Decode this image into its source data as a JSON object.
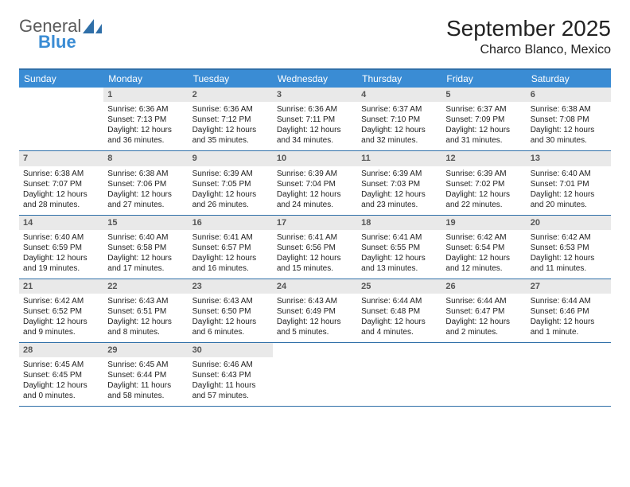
{
  "brand": {
    "line1": "General",
    "line2": "Blue",
    "icon_color": "#2f6fa8"
  },
  "title": "September 2025",
  "location": "Charco Blanco, Mexico",
  "colors": {
    "header_bg": "#3a8cd4",
    "header_text": "#ffffff",
    "border": "#2f6fa8",
    "daynum_bg": "#e9e9e9",
    "daynum_text": "#555555",
    "body_text": "#222222"
  },
  "weekdays": [
    "Sunday",
    "Monday",
    "Tuesday",
    "Wednesday",
    "Thursday",
    "Friday",
    "Saturday"
  ],
  "weeks": [
    [
      null,
      {
        "n": "1",
        "sr": "6:36 AM",
        "ss": "7:13 PM",
        "dl": "12 hours and 36 minutes."
      },
      {
        "n": "2",
        "sr": "6:36 AM",
        "ss": "7:12 PM",
        "dl": "12 hours and 35 minutes."
      },
      {
        "n": "3",
        "sr": "6:36 AM",
        "ss": "7:11 PM",
        "dl": "12 hours and 34 minutes."
      },
      {
        "n": "4",
        "sr": "6:37 AM",
        "ss": "7:10 PM",
        "dl": "12 hours and 32 minutes."
      },
      {
        "n": "5",
        "sr": "6:37 AM",
        "ss": "7:09 PM",
        "dl": "12 hours and 31 minutes."
      },
      {
        "n": "6",
        "sr": "6:38 AM",
        "ss": "7:08 PM",
        "dl": "12 hours and 30 minutes."
      }
    ],
    [
      {
        "n": "7",
        "sr": "6:38 AM",
        "ss": "7:07 PM",
        "dl": "12 hours and 28 minutes."
      },
      {
        "n": "8",
        "sr": "6:38 AM",
        "ss": "7:06 PM",
        "dl": "12 hours and 27 minutes."
      },
      {
        "n": "9",
        "sr": "6:39 AM",
        "ss": "7:05 PM",
        "dl": "12 hours and 26 minutes."
      },
      {
        "n": "10",
        "sr": "6:39 AM",
        "ss": "7:04 PM",
        "dl": "12 hours and 24 minutes."
      },
      {
        "n": "11",
        "sr": "6:39 AM",
        "ss": "7:03 PM",
        "dl": "12 hours and 23 minutes."
      },
      {
        "n": "12",
        "sr": "6:39 AM",
        "ss": "7:02 PM",
        "dl": "12 hours and 22 minutes."
      },
      {
        "n": "13",
        "sr": "6:40 AM",
        "ss": "7:01 PM",
        "dl": "12 hours and 20 minutes."
      }
    ],
    [
      {
        "n": "14",
        "sr": "6:40 AM",
        "ss": "6:59 PM",
        "dl": "12 hours and 19 minutes."
      },
      {
        "n": "15",
        "sr": "6:40 AM",
        "ss": "6:58 PM",
        "dl": "12 hours and 17 minutes."
      },
      {
        "n": "16",
        "sr": "6:41 AM",
        "ss": "6:57 PM",
        "dl": "12 hours and 16 minutes."
      },
      {
        "n": "17",
        "sr": "6:41 AM",
        "ss": "6:56 PM",
        "dl": "12 hours and 15 minutes."
      },
      {
        "n": "18",
        "sr": "6:41 AM",
        "ss": "6:55 PM",
        "dl": "12 hours and 13 minutes."
      },
      {
        "n": "19",
        "sr": "6:42 AM",
        "ss": "6:54 PM",
        "dl": "12 hours and 12 minutes."
      },
      {
        "n": "20",
        "sr": "6:42 AM",
        "ss": "6:53 PM",
        "dl": "12 hours and 11 minutes."
      }
    ],
    [
      {
        "n": "21",
        "sr": "6:42 AM",
        "ss": "6:52 PM",
        "dl": "12 hours and 9 minutes."
      },
      {
        "n": "22",
        "sr": "6:43 AM",
        "ss": "6:51 PM",
        "dl": "12 hours and 8 minutes."
      },
      {
        "n": "23",
        "sr": "6:43 AM",
        "ss": "6:50 PM",
        "dl": "12 hours and 6 minutes."
      },
      {
        "n": "24",
        "sr": "6:43 AM",
        "ss": "6:49 PM",
        "dl": "12 hours and 5 minutes."
      },
      {
        "n": "25",
        "sr": "6:44 AM",
        "ss": "6:48 PM",
        "dl": "12 hours and 4 minutes."
      },
      {
        "n": "26",
        "sr": "6:44 AM",
        "ss": "6:47 PM",
        "dl": "12 hours and 2 minutes."
      },
      {
        "n": "27",
        "sr": "6:44 AM",
        "ss": "6:46 PM",
        "dl": "12 hours and 1 minute."
      }
    ],
    [
      {
        "n": "28",
        "sr": "6:45 AM",
        "ss": "6:45 PM",
        "dl": "12 hours and 0 minutes."
      },
      {
        "n": "29",
        "sr": "6:45 AM",
        "ss": "6:44 PM",
        "dl": "11 hours and 58 minutes."
      },
      {
        "n": "30",
        "sr": "6:46 AM",
        "ss": "6:43 PM",
        "dl": "11 hours and 57 minutes."
      },
      null,
      null,
      null,
      null
    ]
  ],
  "labels": {
    "sunrise": "Sunrise:",
    "sunset": "Sunset:",
    "daylight": "Daylight:"
  }
}
